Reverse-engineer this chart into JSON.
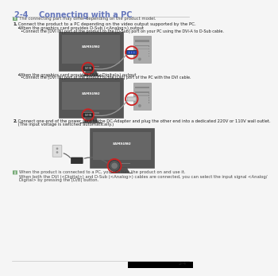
{
  "title": "2-4    Connecting with a PC",
  "title_color": "#6677bb",
  "title_underline_color": "#bbbbbb",
  "bg_color": "#f5f5f5",
  "note_icon_color": "#77aa77",
  "text_color": "#222222",
  "gray_text_color": "#444444",
  "monitor_body": "#555555",
  "monitor_screen": "#666666",
  "monitor_inner": "#777777",
  "monitor_bezel": "#444444",
  "pc_color": "#aaaaaa",
  "pc_dark": "#888888",
  "red_circle_color": "#cc2222",
  "blue_conn_color": "#2244aa",
  "gray_conn_color": "#cccccc",
  "cable_color": "#888888",
  "page_num": "2-4",
  "samsung_label": "SAMSUNG",
  "note1": "The connecting part may differ depending on the product model.",
  "step1_num": "1.",
  "step1_text": " Connect the product to a PC depending on the video output supported by the PC.",
  "bullet1a": "When the graphics card provides D-Sub (<Analog>) output",
  "bullet1a_sub": "Connect the [DVI IN] port of the product to the [D-Sub] port on your PC using the DVI-A to D-Sub cable.",
  "bullet1b": "When the graphics card provides DVI(<Digital>) output",
  "bullet1b_sub": "Connect the [DVI IN] port of the product to the [DVI] port of the PC with the DVI cable.",
  "step2_num": "2.",
  "step2_text": " Connect one end of the power cord to the DC-Adapter and plug the other end into a dedicated 220V or 110V wall outlet. (The input voltage is switched automatically.)",
  "note2a": "When the product is connected to a PC, you can turn the product on and use it.",
  "note2b": "When both the DVI (<Digital>) and D-Sub (<Analog>) cables are connected, you can select the input signal <Analog/Digital> by pressing the [D/B] button."
}
